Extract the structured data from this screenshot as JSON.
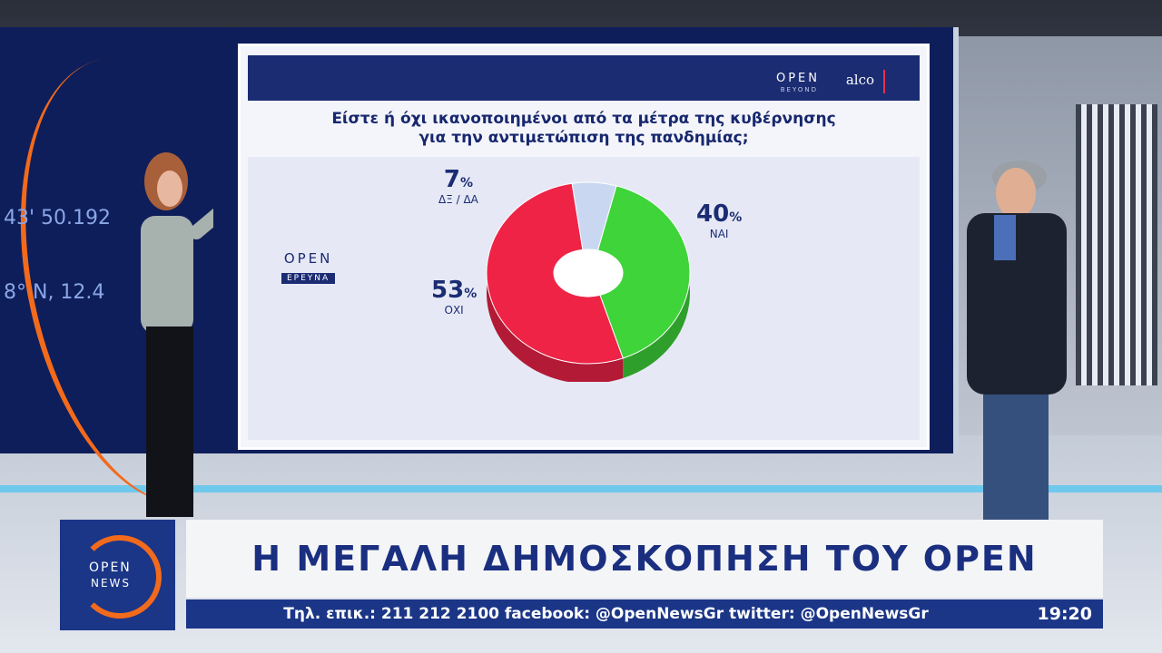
{
  "wall": {
    "coords_line1": "43' 50.192",
    "coords_line2": "8° N, 12.4"
  },
  "screen": {
    "brand_open": "OPEN",
    "brand_beyond": "BEYOND",
    "brand_alco": "alco",
    "question_line1": "Είστε ή όχι ικανοποιημένοι από τα μέτρα της κυβέρνησης",
    "question_line2": "για την αντιμετώπιση της πανδημίας;",
    "sticker_open": "OPEN",
    "sticker_sub": "ΕΡΕΥΝΑ"
  },
  "chart_data": {
    "type": "pie",
    "title": "Είστε ή όχι ικανοποιημένοι από τα μέτρα της κυβέρνησης για την αντιμετώπιση της πανδημίας;",
    "slices": [
      {
        "label": "ΝΑΙ",
        "value": 40,
        "color": "#3fd43a"
      },
      {
        "label": "ΟΧΙ",
        "value": 53,
        "color": "#ee2346"
      },
      {
        "label": "ΔΞ / ΔΑ",
        "value": 7,
        "color": "#c9d8f0"
      }
    ],
    "unit": "%"
  },
  "labels": {
    "yes_value": "40",
    "yes_name": "ΝΑΙ",
    "no_value": "53",
    "no_name": "ΟΧΙ",
    "dk_value": "7",
    "dk_name": "ΔΞ / ΔΑ",
    "pct": "%"
  },
  "lower_third": {
    "logo_open": "OPEN",
    "logo_news": "NEWS",
    "title": "Η ΜΕΓΑΛΗ ΔΗΜΟΣΚΟΠΗΣΗ ΤΟΥ OPEN",
    "ticker": "Τηλ. επικ.: 211 212 2100 facebook: @OpenNewsGr twitter: @OpenNewsGr",
    "clock": "19:20"
  },
  "colors": {
    "navy": "#1b3687",
    "orange": "#f26a1b",
    "yes": "#3fd43a",
    "no": "#ee2346",
    "dk": "#c9d8f0"
  }
}
